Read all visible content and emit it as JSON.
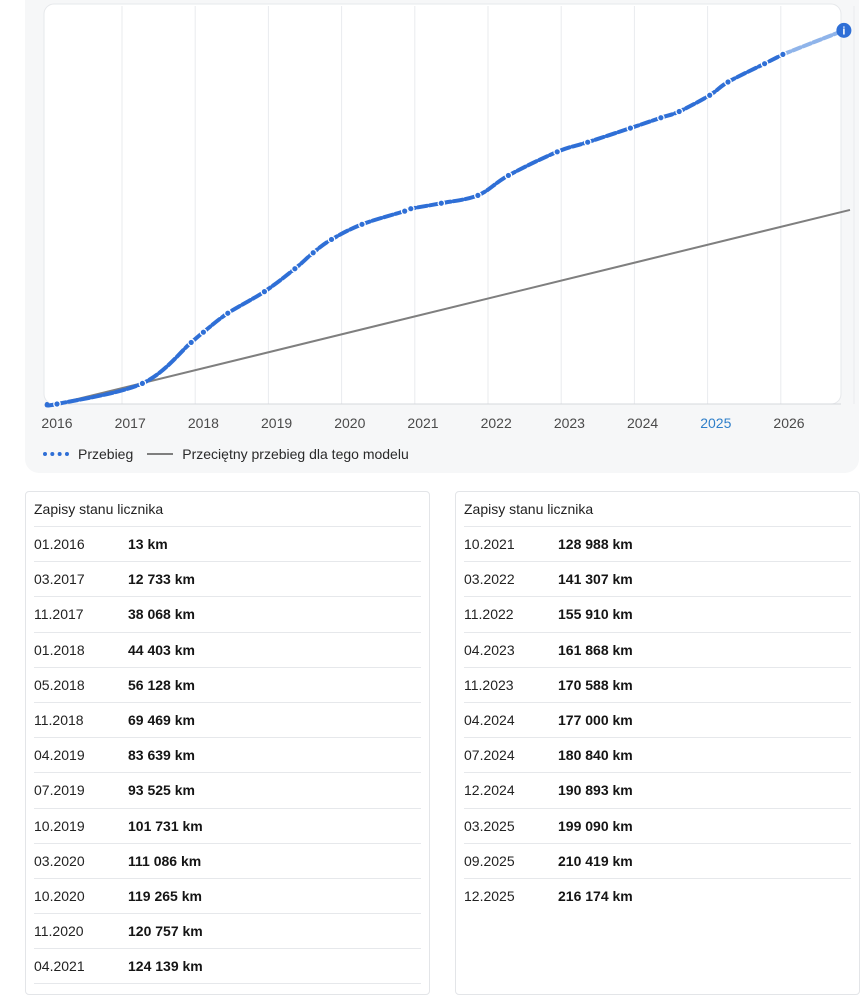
{
  "chart_data": {
    "type": "line",
    "x_ticks": [
      "2016",
      "2017",
      "2018",
      "2019",
      "2020",
      "2021",
      "2022",
      "2023",
      "2024",
      "2025",
      "2026"
    ],
    "highlighted_tick": "2025",
    "xlim": [
      "2016-01",
      "2026-11"
    ],
    "ylim": [
      0,
      230000
    ],
    "grid": "vertical",
    "legend_position": "bottom-left",
    "series": [
      {
        "name": "Przebieg",
        "style": "dashed-with-points",
        "color": "#2f6fd6",
        "points": [
          {
            "date": "2016-01",
            "km": 13
          },
          {
            "date": "2017-03",
            "km": 12733
          },
          {
            "date": "2017-11",
            "km": 38068
          },
          {
            "date": "2018-01",
            "km": 44403
          },
          {
            "date": "2018-05",
            "km": 56128
          },
          {
            "date": "2018-11",
            "km": 69469
          },
          {
            "date": "2019-04",
            "km": 83639
          },
          {
            "date": "2019-07",
            "km": 93525
          },
          {
            "date": "2019-10",
            "km": 101731
          },
          {
            "date": "2020-03",
            "km": 111086
          },
          {
            "date": "2020-10",
            "km": 119265
          },
          {
            "date": "2020-11",
            "km": 120757
          },
          {
            "date": "2021-04",
            "km": 124139
          },
          {
            "date": "2021-10",
            "km": 128988
          },
          {
            "date": "2022-03",
            "km": 141307
          },
          {
            "date": "2022-11",
            "km": 155910
          },
          {
            "date": "2023-04",
            "km": 161868
          },
          {
            "date": "2023-11",
            "km": 170588
          },
          {
            "date": "2024-04",
            "km": 177000
          },
          {
            "date": "2024-07",
            "km": 180840
          },
          {
            "date": "2024-12",
            "km": 190893
          },
          {
            "date": "2025-03",
            "km": 199090
          },
          {
            "date": "2025-09",
            "km": 210419
          },
          {
            "date": "2025-12",
            "km": 216174
          }
        ],
        "projection_to": {
          "date": "2026-10",
          "km": 231000
        }
      },
      {
        "name": "Przeciętny przebieg dla tego modelu",
        "style": "solid",
        "color": "#7f7f7f",
        "points": [
          {
            "date": "2016-01",
            "km": 0
          },
          {
            "date": "2026-11",
            "km": 120000
          }
        ]
      }
    ]
  },
  "legend": {
    "series1_label": "Przebieg",
    "series2_label": "Przeciętny przebieg dla tego modelu"
  },
  "info_marker": {
    "icon": "info-icon",
    "symbol": "i",
    "color": "#2f6fd6"
  },
  "left_table": {
    "title": "Zapisy stanu licznika",
    "rows": [
      {
        "date": "01.2016",
        "km": "13 km"
      },
      {
        "date": "03.2017",
        "km": "12 733 km"
      },
      {
        "date": "11.2017",
        "km": "38 068 km"
      },
      {
        "date": "01.2018",
        "km": "44 403 km"
      },
      {
        "date": "05.2018",
        "km": "56 128 km"
      },
      {
        "date": "11.2018",
        "km": "69 469 km"
      },
      {
        "date": "04.2019",
        "km": "83 639 km"
      },
      {
        "date": "07.2019",
        "km": "93 525 km"
      },
      {
        "date": "10.2019",
        "km": "101 731 km"
      },
      {
        "date": "03.2020",
        "km": "111 086 km"
      },
      {
        "date": "10.2020",
        "km": "119 265 km"
      },
      {
        "date": "11.2020",
        "km": "120 757 km"
      },
      {
        "date": "04.2021",
        "km": "124 139 km"
      }
    ]
  },
  "right_table": {
    "title": "Zapisy stanu licznika",
    "rows": [
      {
        "date": "10.2021",
        "km": "128 988 km"
      },
      {
        "date": "03.2022",
        "km": "141 307 km"
      },
      {
        "date": "11.2022",
        "km": "155 910 km"
      },
      {
        "date": "04.2023",
        "km": "161 868 km"
      },
      {
        "date": "11.2023",
        "km": "170 588 km"
      },
      {
        "date": "04.2024",
        "km": "177 000 km"
      },
      {
        "date": "07.2024",
        "km": "180 840 km"
      },
      {
        "date": "12.2024",
        "km": "190 893 km"
      },
      {
        "date": "03.2025",
        "km": "199 090 km"
      },
      {
        "date": "09.2025",
        "km": "210 419 km"
      },
      {
        "date": "12.2025",
        "km": "216 174 km"
      }
    ]
  }
}
